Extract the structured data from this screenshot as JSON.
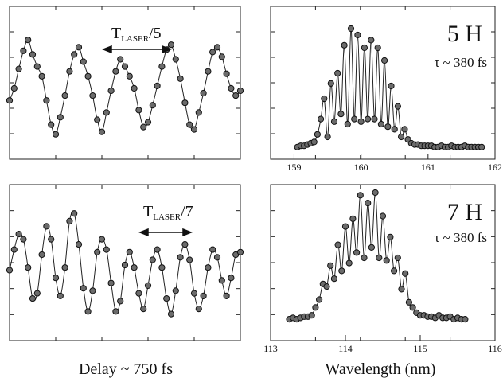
{
  "figure": {
    "left_xlabel": "Delay ~ 750 fs",
    "right_xlabel": "Wavelength (nm)"
  },
  "chart_data": [
    {
      "id": "delay-5h",
      "type": "scatter",
      "xlabel": "",
      "ylabel": "",
      "annotation": {
        "base": "T",
        "sub": "LASER",
        "tail": "/5"
      },
      "period": 0.2,
      "x": [
        0.0,
        0.02,
        0.04,
        0.06,
        0.08,
        0.1,
        0.12,
        0.14,
        0.16,
        0.18,
        0.2,
        0.22,
        0.24,
        0.26,
        0.28,
        0.3,
        0.32,
        0.34,
        0.36,
        0.38,
        0.4,
        0.42,
        0.44,
        0.46,
        0.48,
        0.5,
        0.52,
        0.54,
        0.56,
        0.58,
        0.6,
        0.62,
        0.64,
        0.66,
        0.68,
        0.7,
        0.72,
        0.74,
        0.76,
        0.78,
        0.8,
        0.82,
        0.84,
        0.86,
        0.88,
        0.9,
        0.92,
        0.94,
        0.96,
        0.98,
        1.0
      ],
      "y": [
        0.42,
        0.52,
        0.68,
        0.83,
        0.92,
        0.8,
        0.7,
        0.62,
        0.42,
        0.22,
        0.14,
        0.28,
        0.46,
        0.66,
        0.8,
        0.86,
        0.74,
        0.62,
        0.46,
        0.26,
        0.16,
        0.32,
        0.5,
        0.66,
        0.76,
        0.7,
        0.62,
        0.52,
        0.34,
        0.2,
        0.24,
        0.38,
        0.54,
        0.7,
        0.84,
        0.88,
        0.76,
        0.6,
        0.4,
        0.22,
        0.18,
        0.32,
        0.48,
        0.66,
        0.82,
        0.86,
        0.78,
        0.64,
        0.52,
        0.46,
        0.5
      ],
      "xlim": [
        0,
        1
      ],
      "ylim": [
        0,
        1
      ],
      "grid": false
    },
    {
      "id": "spectrum-5h",
      "type": "scatter",
      "title": "5 H",
      "subtitle": "τ ~ 380 fs",
      "xlabel": "",
      "ylabel": "",
      "xticks": [
        "159",
        "160",
        "161",
        "162"
      ],
      "xlim": [
        158.65,
        162.0
      ],
      "ylim": [
        0,
        1
      ],
      "x": [
        159.05,
        159.1,
        159.15,
        159.2,
        159.25,
        159.3,
        159.35,
        159.4,
        159.45,
        159.5,
        159.55,
        159.6,
        159.65,
        159.7,
        159.75,
        159.8,
        159.85,
        159.9,
        159.95,
        160.0,
        160.05,
        160.1,
        160.15,
        160.2,
        160.25,
        160.3,
        160.35,
        160.4,
        160.45,
        160.5,
        160.55,
        160.6,
        160.65,
        160.7,
        160.75,
        160.8,
        160.85,
        160.9,
        160.95,
        161.0,
        161.05,
        161.1,
        161.15,
        161.2,
        161.25,
        161.3,
        161.35,
        161.4,
        161.45,
        161.5,
        161.55,
        161.6,
        161.65,
        161.7,
        161.75,
        161.8
      ],
      "y": [
        0.02,
        0.03,
        0.03,
        0.04,
        0.05,
        0.06,
        0.12,
        0.24,
        0.4,
        0.1,
        0.52,
        0.22,
        0.6,
        0.28,
        0.82,
        0.2,
        0.95,
        0.24,
        0.9,
        0.22,
        0.8,
        0.24,
        0.86,
        0.24,
        0.8,
        0.2,
        0.7,
        0.18,
        0.5,
        0.16,
        0.34,
        0.1,
        0.16,
        0.08,
        0.05,
        0.04,
        0.04,
        0.03,
        0.03,
        0.03,
        0.03,
        0.02,
        0.02,
        0.03,
        0.02,
        0.02,
        0.03,
        0.02,
        0.02,
        0.02,
        0.03,
        0.02,
        0.02,
        0.02,
        0.02,
        0.02
      ],
      "grid": false
    },
    {
      "id": "delay-7h",
      "type": "scatter",
      "xlabel": "",
      "ylabel": "",
      "annotation": {
        "base": "T",
        "sub": "LASER",
        "tail": "/7"
      },
      "period": 0.143,
      "x": [
        0.0,
        0.02,
        0.04,
        0.06,
        0.08,
        0.1,
        0.12,
        0.14,
        0.16,
        0.18,
        0.2,
        0.22,
        0.24,
        0.26,
        0.28,
        0.3,
        0.32,
        0.34,
        0.36,
        0.38,
        0.4,
        0.42,
        0.44,
        0.46,
        0.48,
        0.5,
        0.52,
        0.54,
        0.56,
        0.58,
        0.6,
        0.62,
        0.64,
        0.66,
        0.68,
        0.7,
        0.72,
        0.74,
        0.76,
        0.78,
        0.8,
        0.82,
        0.84,
        0.86,
        0.88,
        0.9,
        0.92,
        0.94,
        0.96,
        0.98,
        1.0
      ],
      "y": [
        0.46,
        0.62,
        0.74,
        0.7,
        0.48,
        0.24,
        0.28,
        0.58,
        0.8,
        0.7,
        0.4,
        0.26,
        0.48,
        0.84,
        0.9,
        0.66,
        0.32,
        0.14,
        0.3,
        0.6,
        0.7,
        0.62,
        0.36,
        0.14,
        0.22,
        0.5,
        0.6,
        0.48,
        0.28,
        0.16,
        0.34,
        0.54,
        0.62,
        0.48,
        0.24,
        0.12,
        0.3,
        0.56,
        0.66,
        0.54,
        0.28,
        0.16,
        0.26,
        0.48,
        0.62,
        0.56,
        0.38,
        0.26,
        0.4,
        0.58,
        0.6
      ],
      "xlim": [
        0,
        1
      ],
      "ylim": [
        0,
        1
      ],
      "grid": false
    },
    {
      "id": "spectrum-7h",
      "type": "scatter",
      "title": "7 H",
      "subtitle": "τ ~ 380 fs",
      "xlabel": "",
      "ylabel": "",
      "xticks": [
        "113",
        "114",
        "115",
        "116"
      ],
      "xlim": [
        113.0,
        116.0
      ],
      "ylim": [
        0,
        1
      ],
      "x": [
        113.25,
        113.3,
        113.35,
        113.4,
        113.45,
        113.5,
        113.55,
        113.6,
        113.65,
        113.7,
        113.75,
        113.8,
        113.85,
        113.9,
        113.95,
        114.0,
        114.05,
        114.1,
        114.15,
        114.2,
        114.25,
        114.3,
        114.35,
        114.4,
        114.45,
        114.5,
        114.55,
        114.6,
        114.65,
        114.7,
        114.75,
        114.8,
        114.85,
        114.9,
        114.95,
        115.0,
        115.05,
        115.1,
        115.15,
        115.2,
        115.25,
        115.3,
        115.35,
        115.4,
        115.45,
        115.5,
        115.55,
        115.6
      ],
      "y": [
        0.03,
        0.04,
        0.03,
        0.04,
        0.05,
        0.05,
        0.06,
        0.12,
        0.18,
        0.3,
        0.28,
        0.44,
        0.34,
        0.6,
        0.4,
        0.74,
        0.46,
        0.8,
        0.54,
        0.98,
        0.5,
        0.92,
        0.58,
        1.0,
        0.5,
        0.82,
        0.48,
        0.66,
        0.4,
        0.5,
        0.26,
        0.38,
        0.16,
        0.12,
        0.08,
        0.06,
        0.06,
        0.05,
        0.05,
        0.04,
        0.06,
        0.04,
        0.04,
        0.05,
        0.03,
        0.04,
        0.03,
        0.03
      ],
      "grid": false
    }
  ]
}
